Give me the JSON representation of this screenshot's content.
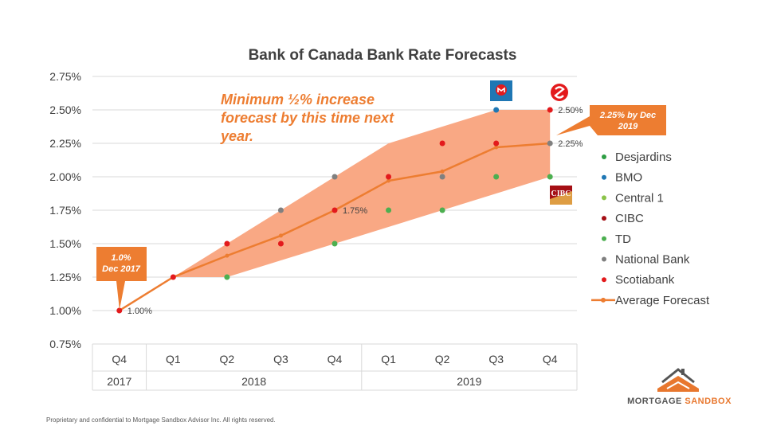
{
  "chart_data": {
    "type": "line",
    "title": "Bank of Canada Bank Rate Forecasts",
    "ylim": [
      0.75,
      2.75
    ],
    "y_ticks": [
      "0.75%",
      "1.00%",
      "1.25%",
      "1.50%",
      "1.75%",
      "2.00%",
      "2.25%",
      "2.50%",
      "2.75%"
    ],
    "y_tick_values": [
      0.75,
      1.0,
      1.25,
      1.5,
      1.75,
      2.0,
      2.25,
      2.5,
      2.75
    ],
    "categories": [
      "Q4",
      "Q1",
      "Q2",
      "Q3",
      "Q4",
      "Q1",
      "Q2",
      "Q3",
      "Q4"
    ],
    "years": [
      {
        "label": "2017",
        "span": [
          0,
          0
        ]
      },
      {
        "label": "2018",
        "span": [
          1,
          4
        ]
      },
      {
        "label": "2019",
        "span": [
          5,
          8
        ]
      }
    ],
    "band": {
      "lower": [
        1.0,
        1.25,
        1.25,
        1.375,
        1.5,
        1.625,
        1.75,
        1.875,
        2.0
      ],
      "upper": [
        1.0,
        1.25,
        1.5,
        1.75,
        2.0,
        2.25,
        2.375,
        2.5,
        2.5
      ],
      "color": "#F9A884"
    },
    "series": [
      {
        "name": "Desjardins",
        "color": "#2E9E44",
        "values": [
          null,
          null,
          null,
          null,
          null,
          null,
          null,
          null,
          null
        ]
      },
      {
        "name": "BMO",
        "color": "#1F77B4",
        "values": [
          null,
          null,
          null,
          null,
          null,
          null,
          null,
          2.5,
          null
        ]
      },
      {
        "name": "Central 1",
        "color": "#8BC34A",
        "values": [
          null,
          null,
          null,
          null,
          null,
          null,
          null,
          null,
          null
        ]
      },
      {
        "name": "CIBC",
        "color": "#A50F15",
        "values": [
          null,
          null,
          null,
          null,
          null,
          null,
          null,
          null,
          null
        ]
      },
      {
        "name": "TD",
        "color": "#4CAF50",
        "values": [
          null,
          null,
          1.25,
          null,
          1.5,
          1.75,
          1.75,
          2.0,
          2.0
        ]
      },
      {
        "name": "National Bank",
        "color": "#808080",
        "values": [
          null,
          null,
          null,
          1.75,
          2.0,
          null,
          2.0,
          null,
          2.25
        ]
      },
      {
        "name": "Scotiabank",
        "color": "#E31A1C",
        "values": [
          1.0,
          1.25,
          1.5,
          1.5,
          1.75,
          2.0,
          2.25,
          2.25,
          2.5
        ]
      }
    ],
    "average": {
      "name": "Average Forecast",
      "color": "#ED7D31",
      "values": [
        1.0,
        1.25,
        1.41,
        1.56,
        1.75,
        1.97,
        2.04,
        2.22,
        2.25
      ]
    },
    "data_labels": [
      {
        "index": 0,
        "value": 1.0,
        "text": "1.00%"
      },
      {
        "index": 4,
        "value": 1.75,
        "text": "1.75%"
      },
      {
        "index": 8,
        "value": 2.5,
        "text": "2.50%"
      },
      {
        "index": 8,
        "value": 2.25,
        "text": "2.25%"
      }
    ],
    "annotation": [
      "Minimum ½% increase",
      "forecast by this time next",
      "year."
    ],
    "callouts": [
      {
        "lines": [
          "1.0%",
          "Dec 2017"
        ],
        "color": "#ED7D31"
      },
      {
        "lines": [
          "2.25% by Dec",
          "2019"
        ],
        "color": "#ED7D31"
      }
    ],
    "bank_logos": {
      "bmo": "bmo-logo",
      "scotiabank": "scotiabank-logo",
      "cibc": "CIBC"
    }
  },
  "footer": "Proprietary and confidential to Mortgage Sandbox Advisor Inc. All rights reserved.",
  "brand": {
    "part1": "MORTGAGE",
    "part2": "SANDBOX",
    "accent": "#E8772E"
  }
}
